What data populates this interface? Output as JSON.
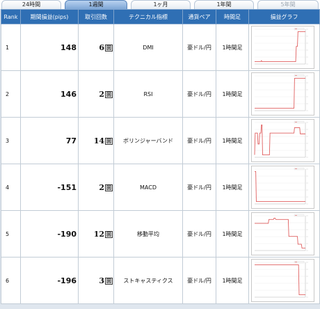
{
  "tabs": [
    {
      "label": "24時間",
      "state": "normal"
    },
    {
      "label": "1週間",
      "state": "active"
    },
    {
      "label": "1ヶ月",
      "state": "normal"
    },
    {
      "label": "1年間",
      "state": "normal"
    },
    {
      "label": "5年間",
      "state": "disabled"
    }
  ],
  "columns": {
    "rank": "Rank",
    "pips": "期間損益(pips)",
    "count": "取引回数",
    "indicator": "テクニカル指標",
    "pair": "通貨ペア",
    "timeframe": "時間足",
    "graph": "損益グラフ"
  },
  "count_suffix": "回",
  "colors": {
    "header_bg": "#2f6fb4",
    "active_tab": "#7ea6d6",
    "graph_line": "#e06060"
  },
  "rows": [
    {
      "rank": "1",
      "pips": "148",
      "count": "6",
      "indicator": "DMI",
      "pair": "豪ドル/円",
      "timeframe": "1時間足"
    },
    {
      "rank": "2",
      "pips": "146",
      "count": "2",
      "indicator": "RSI",
      "pair": "豪ドル/円",
      "timeframe": "1時間足"
    },
    {
      "rank": "3",
      "pips": "77",
      "count": "14",
      "indicator": "ボリンジャーバンド",
      "pair": "豪ドル/円",
      "timeframe": "1時間足"
    },
    {
      "rank": "4",
      "pips": "-151",
      "count": "2",
      "indicator": "MACD",
      "pair": "豪ドル/円",
      "timeframe": "1時間足"
    },
    {
      "rank": "5",
      "pips": "-190",
      "count": "12",
      "indicator": "移動平均",
      "pair": "豪ドル/円",
      "timeframe": "1時間足"
    },
    {
      "rank": "6",
      "pips": "-196",
      "count": "3",
      "indicator": "ストキャスティクス",
      "pair": "豪ドル/円",
      "timeframe": "1時間足"
    }
  ],
  "profit_curves": [
    [
      0,
      0,
      0,
      0,
      0,
      0,
      0,
      0,
      0,
      0,
      0,
      0,
      5,
      0,
      0,
      0,
      0,
      0,
      0,
      0,
      0,
      0,
      0,
      0,
      0,
      0,
      0,
      0,
      0,
      0,
      0,
      0,
      0,
      0,
      0,
      0,
      0,
      0,
      0,
      0,
      0,
      0,
      0,
      0,
      0,
      0,
      0,
      0,
      0,
      0,
      0,
      0,
      0,
      0,
      0,
      0,
      0,
      0,
      0,
      0,
      0,
      0,
      0,
      0,
      0,
      0,
      0,
      0,
      0,
      0,
      0,
      0,
      0,
      75,
      75,
      75,
      148,
      148,
      148,
      148,
      148,
      148,
      148,
      148,
      148,
      148,
      148,
      148,
      148,
      148
    ],
    [
      0,
      0,
      0,
      0,
      0,
      0,
      0,
      0,
      0,
      0,
      0,
      0,
      0,
      0,
      0,
      0,
      0,
      0,
      0,
      0,
      0,
      0,
      0,
      0,
      0,
      0,
      0,
      0,
      0,
      0,
      0,
      0,
      0,
      0,
      0,
      0,
      0,
      0,
      0,
      0,
      0,
      0,
      0,
      0,
      0,
      0,
      0,
      0,
      0,
      0,
      0,
      0,
      0,
      0,
      0,
      0,
      0,
      0,
      0,
      0,
      0,
      0,
      0,
      0,
      0,
      0,
      0,
      0,
      0,
      0,
      146,
      146,
      146,
      146,
      146,
      146,
      146,
      146,
      146,
      146,
      146,
      146,
      146,
      146,
      146,
      146,
      146,
      146,
      146,
      146
    ],
    [
      0,
      80,
      80,
      80,
      80,
      80,
      40,
      40,
      40,
      80,
      80,
      80,
      110,
      110,
      0,
      0,
      0,
      0,
      0,
      0,
      0,
      0,
      0,
      0,
      0,
      0,
      0,
      80,
      80,
      80,
      80,
      80,
      80,
      80,
      80,
      80,
      80,
      80,
      80,
      80,
      80,
      80,
      80,
      80,
      80,
      80,
      80,
      80,
      80,
      80,
      80,
      80,
      80,
      80,
      80,
      80,
      80,
      80,
      80,
      80,
      80,
      80,
      80,
      80,
      80,
      80,
      80,
      80,
      80,
      80,
      100,
      100,
      100,
      100,
      100,
      100,
      100,
      100,
      100,
      100,
      77,
      77,
      77,
      77,
      77,
      77,
      77,
      77,
      77,
      77
    ],
    [
      0,
      0,
      0,
      -151,
      -151,
      -151,
      -151,
      -151,
      -151,
      -151,
      -151,
      -151,
      -151,
      -151,
      -151,
      -151,
      -151,
      -151,
      -151,
      -151,
      -151,
      -151,
      -151,
      -151,
      -151,
      -151,
      -151,
      -151,
      -151,
      -151,
      -151,
      -151,
      -151,
      -151,
      -151,
      -151,
      -151,
      -151,
      -151,
      -151,
      -151,
      -151,
      -151,
      -151,
      -151,
      -151,
      -151,
      -151,
      -151,
      -151,
      -151,
      -151,
      -151,
      -151,
      -151,
      -151,
      -151,
      -151,
      -151,
      -151,
      -151,
      -151,
      -151,
      -151,
      -151,
      -151,
      -151,
      -151,
      -151,
      -151,
      -151,
      -151,
      -151,
      -151,
      -151,
      -151,
      -151,
      -151,
      -151,
      -151,
      -151,
      -151,
      -151,
      -151,
      -151,
      -151,
      -151,
      -151,
      -151,
      -151
    ],
    [
      0,
      0,
      0,
      0,
      0,
      0,
      0,
      0,
      0,
      0,
      0,
      0,
      0,
      0,
      0,
      0,
      0,
      0,
      0,
      0,
      0,
      0,
      0,
      0,
      0,
      30,
      30,
      30,
      30,
      30,
      30,
      30,
      30,
      30,
      40,
      40,
      40,
      30,
      30,
      30,
      30,
      30,
      30,
      30,
      30,
      30,
      30,
      30,
      30,
      30,
      30,
      30,
      30,
      30,
      30,
      30,
      30,
      30,
      30,
      30,
      -100,
      -100,
      -100,
      -100,
      -100,
      -100,
      -100,
      -100,
      -100,
      -100,
      -100,
      -100,
      -100,
      -100,
      -100,
      -100,
      -160,
      -160,
      -160,
      -160,
      -160,
      -160,
      -160,
      -190,
      -190,
      -190,
      -190,
      -190,
      -190,
      -190
    ],
    [
      0,
      0,
      0,
      0,
      0,
      0,
      0,
      0,
      0,
      0,
      0,
      0,
      0,
      0,
      0,
      0,
      0,
      0,
      0,
      0,
      0,
      0,
      0,
      0,
      0,
      0,
      0,
      0,
      0,
      0,
      0,
      0,
      0,
      0,
      0,
      0,
      0,
      0,
      0,
      0,
      0,
      0,
      0,
      0,
      0,
      0,
      0,
      0,
      0,
      0,
      0,
      0,
      0,
      0,
      0,
      0,
      0,
      0,
      0,
      0,
      0,
      0,
      0,
      0,
      0,
      0,
      0,
      0,
      0,
      0,
      0,
      0,
      0,
      0,
      0,
      0,
      0,
      0,
      -196,
      -196,
      -196,
      -196,
      -196,
      -196,
      -196,
      -196,
      -196,
      -196,
      -196,
      -196
    ]
  ]
}
